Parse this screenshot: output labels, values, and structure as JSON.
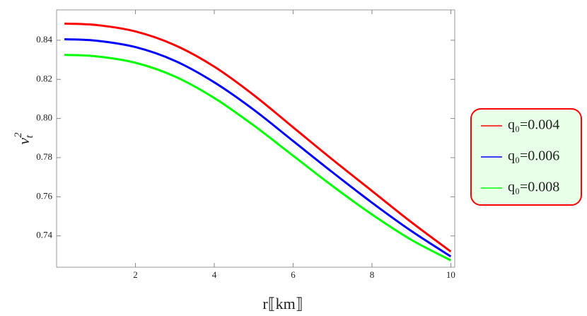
{
  "chart_data": {
    "type": "line",
    "x_label": "r⟦km⟧",
    "y_label": "v",
    "y_label_sub": "t",
    "y_label_sup": "2",
    "x": [
      0.2,
      1,
      2,
      3,
      4,
      5,
      6,
      7,
      8,
      9,
      10
    ],
    "series": [
      {
        "name": "q₀=0.004",
        "color": "#ff0000",
        "values": [
          0.8485,
          0.8478,
          0.8445,
          0.8375,
          0.8265,
          0.812,
          0.7955,
          0.779,
          0.763,
          0.747,
          0.732
        ]
      },
      {
        "name": "q₀=0.006",
        "color": "#0000ff",
        "values": [
          0.8405,
          0.8398,
          0.8365,
          0.8295,
          0.8185,
          0.8045,
          0.7885,
          0.7725,
          0.757,
          0.7425,
          0.7295
        ]
      },
      {
        "name": "q₀=0.008",
        "color": "#00ff00",
        "values": [
          0.8325,
          0.8318,
          0.8285,
          0.8215,
          0.8105,
          0.7965,
          0.781,
          0.7655,
          0.751,
          0.738,
          0.7275
        ]
      }
    ],
    "xlim": [
      0,
      10.1
    ],
    "ylim": [
      0.724,
      0.8555
    ],
    "xticks": [
      2,
      4,
      6,
      8,
      10
    ],
    "yticks": [
      0.74,
      0.76,
      0.78,
      {
        "value": 0.8,
        "label": "0.80"
      },
      0.82,
      0.84
    ],
    "grid": false,
    "legend": "right"
  }
}
